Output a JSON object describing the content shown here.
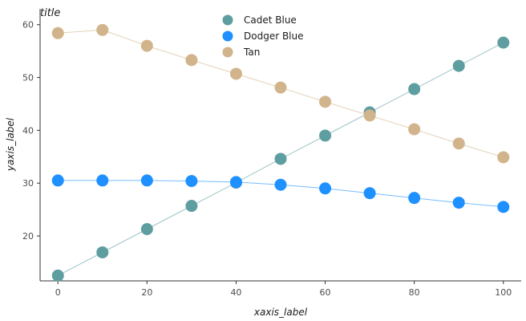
{
  "chart_data": {
    "type": "line",
    "title": "title",
    "xlabel": "xaxis_label",
    "ylabel": "yaxis_label",
    "xlim": [
      -4,
      104
    ],
    "ylim": [
      11.5,
      63
    ],
    "xticks": [
      0,
      20,
      40,
      60,
      80,
      100
    ],
    "yticks": [
      20,
      30,
      40,
      50,
      60
    ],
    "grid": false,
    "legend": "top-center",
    "series": [
      {
        "name": "Cadet Blue",
        "color": "#5F9EA0",
        "x": [
          0,
          10,
          20,
          30,
          40,
          50,
          60,
          70,
          80,
          90,
          100
        ],
        "y": [
          12.5,
          16.9,
          21.3,
          25.7,
          30.1,
          34.6,
          39.0,
          43.4,
          47.8,
          52.2,
          56.6
        ]
      },
      {
        "name": "Dodger Blue",
        "color": "#1E90FF",
        "x": [
          0,
          10,
          20,
          30,
          40,
          50,
          60,
          70,
          80,
          90,
          100
        ],
        "y": [
          30.5,
          30.5,
          30.5,
          30.4,
          30.2,
          29.7,
          29.0,
          28.1,
          27.2,
          26.3,
          25.5
        ]
      },
      {
        "name": "Tan",
        "color": "#D2B48C",
        "x": [
          0,
          10,
          20,
          30,
          40,
          50,
          60,
          70,
          80,
          90,
          100
        ],
        "y": [
          58.4,
          59.0,
          56.0,
          53.3,
          50.7,
          48.1,
          45.4,
          42.8,
          40.2,
          37.5,
          34.9
        ]
      }
    ]
  }
}
